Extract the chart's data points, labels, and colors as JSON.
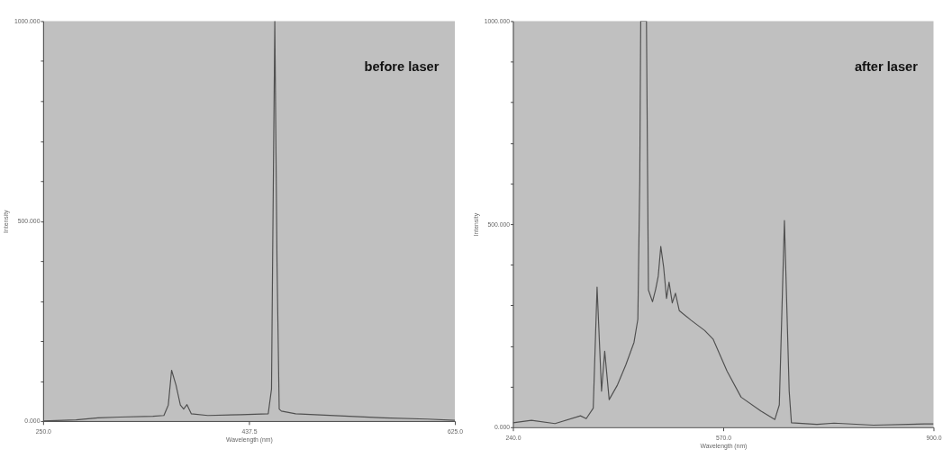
{
  "chart_data": [
    {
      "type": "line",
      "xlabel": "Wavelength (nm)",
      "ylabel": "Intensity",
      "annotations": [
        "before laser"
      ],
      "xlim": [
        250,
        625
      ],
      "xticks": [
        {
          "value": 250,
          "label": "250.0"
        },
        {
          "value": 437.5,
          "label": "437.5"
        },
        {
          "value": 625,
          "label": "625.0"
        }
      ],
      "ylim": [
        0,
        1000
      ],
      "yticks": [
        {
          "value": 0,
          "label": "0.000"
        },
        {
          "value": 100,
          "label": null
        },
        {
          "value": 200,
          "label": null
        },
        {
          "value": 300,
          "label": null
        },
        {
          "value": 400,
          "label": null
        },
        {
          "value": 500,
          "label": "500.000"
        },
        {
          "value": 600,
          "label": null
        },
        {
          "value": 700,
          "label": null
        },
        {
          "value": 800,
          "label": null
        },
        {
          "value": 900,
          "label": null
        },
        {
          "value": 1000,
          "label": "1000.000"
        }
      ],
      "grid": false,
      "series": [
        {
          "color": "#505050",
          "x": [
            250,
            280,
            300,
            320,
            350,
            360,
            364,
            367,
            371,
            375,
            378,
            381,
            385,
            400,
            430,
            455,
            458,
            459,
            461,
            463,
            465,
            467,
            480,
            520,
            560,
            600,
            625
          ],
          "values": [
            0,
            3,
            8,
            10,
            12,
            14,
            40,
            127,
            90,
            40,
            30,
            41,
            18,
            14,
            16,
            18,
            80,
            400,
            1000,
            400,
            30,
            25,
            18,
            13,
            8,
            5,
            2
          ]
        }
      ]
    },
    {
      "type": "line",
      "xlabel": "Wavelength (nm)",
      "ylabel": "Intensity",
      "annotations": [
        "after laser"
      ],
      "xlim": [
        240,
        900
      ],
      "xticks": [
        {
          "value": 240,
          "label": "240.0"
        },
        {
          "value": 570,
          "label": "570.0"
        },
        {
          "value": 900,
          "label": "900.0"
        }
      ],
      "ylim": [
        0,
        1000
      ],
      "yticks": [
        {
          "value": 0,
          "label": "0.000"
        },
        {
          "value": 100,
          "label": null
        },
        {
          "value": 200,
          "label": null
        },
        {
          "value": 300,
          "label": null
        },
        {
          "value": 400,
          "label": null
        },
        {
          "value": 500,
          "label": "500.000"
        },
        {
          "value": 600,
          "label": null
        },
        {
          "value": 700,
          "label": null
        },
        {
          "value": 800,
          "label": null
        },
        {
          "value": 900,
          "label": null
        },
        {
          "value": 1000,
          "label": "1000.000"
        }
      ],
      "grid": false,
      "series": [
        {
          "color": "#505050",
          "x": [
            240,
            269,
            306,
            346,
            355,
            366,
            372,
            379,
            384,
            391,
            404,
            417,
            430,
            436,
            439,
            440.5,
            449.5,
            452.6,
            459,
            464,
            468,
            472,
            476.5,
            481,
            485,
            490,
            495,
            501,
            519,
            541,
            554,
            576,
            598,
            629,
            651,
            658,
            666,
            673.5,
            677,
            717,
            744,
            806,
            886,
            900
          ],
          "values": [
            11,
            17,
            9,
            28,
            21,
            47,
            345,
            89,
            187,
            68,
            104,
            153,
            209,
            266,
            606,
            1000,
            1000,
            338,
            309,
            340,
            372,
            445,
            394,
            317,
            357,
            306,
            330,
            287,
            264,
            238,
            217,
            138,
            74,
            40,
            19,
            55,
            509,
            89,
            11,
            7,
            10,
            5,
            8,
            8
          ]
        }
      ]
    }
  ]
}
